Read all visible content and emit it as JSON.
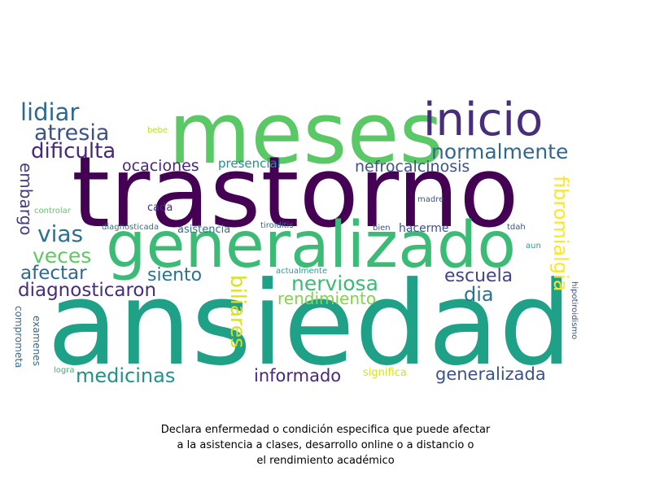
{
  "words": [
    {
      "text": "meses",
      "color": "#5ac864"
    },
    {
      "text": "trastorno",
      "color": "#440154"
    },
    {
      "text": "ansiedad",
      "color": "#1fa187"
    },
    {
      "text": "generalizado",
      "color": "#3bbb75"
    },
    {
      "text": "inicio",
      "color": "#472d7b"
    },
    {
      "text": "lidiar",
      "color": "#31688e"
    },
    {
      "text": "atresia",
      "color": "#3b528b"
    },
    {
      "text": "dificulta",
      "color": "#482878"
    },
    {
      "text": "normalmente",
      "color": "#31688e"
    },
    {
      "text": "nefrocalcinosis",
      "color": "#3b528b"
    },
    {
      "text": "ocaciones",
      "color": "#482878"
    },
    {
      "text": "presencial",
      "color": "#21918c"
    },
    {
      "text": "embargo",
      "color": "#433e85"
    },
    {
      "text": "fibromialgia",
      "color": "#fde725"
    },
    {
      "text": "vias",
      "color": "#2c728e"
    },
    {
      "text": "veces",
      "color": "#5ec962"
    },
    {
      "text": "afectar",
      "color": "#31688e"
    },
    {
      "text": "siento",
      "color": "#2c728e"
    },
    {
      "text": "diagnosticaron",
      "color": "#472d7b"
    },
    {
      "text": "nerviosa",
      "color": "#3bbb75"
    },
    {
      "text": "escuela",
      "color": "#414487"
    },
    {
      "text": "dia",
      "color": "#2c728e"
    },
    {
      "text": "rendimiento",
      "color": "#84d44b"
    },
    {
      "text": "biliares",
      "color": "#d8e219"
    },
    {
      "text": "medicinas",
      "color": "#21918c"
    },
    {
      "text": "informado",
      "color": "#482878"
    },
    {
      "text": "generalizada",
      "color": "#3b528b"
    },
    {
      "text": "significa",
      "color": "#d8e219"
    },
    {
      "text": "hacerme",
      "color": "#3b528b"
    },
    {
      "text": "bebe",
      "color": "#b5de2b"
    },
    {
      "text": "cada",
      "color": "#472d7b"
    },
    {
      "text": "controlar",
      "color": "#5ec962"
    },
    {
      "text": "diagnosticada",
      "color": "#2c728e"
    },
    {
      "text": "asistencia",
      "color": "#2c728e"
    },
    {
      "text": "tiroiditis",
      "color": "#31688e"
    },
    {
      "text": "bien",
      "color": "#3b528b"
    },
    {
      "text": "tdah",
      "color": "#3b528b"
    },
    {
      "text": "madre",
      "color": "#3b528b"
    },
    {
      "text": "aun",
      "color": "#2a9d8f"
    },
    {
      "text": "actualmente",
      "color": "#2a9d8f"
    },
    {
      "text": "hipotiroidismo",
      "color": "#3b528b"
    },
    {
      "text": "comprometa",
      "color": "#31688e"
    },
    {
      "text": "examenes",
      "color": "#31688e"
    },
    {
      "text": "logra",
      "color": "#35b779"
    }
  ],
  "caption": [
    "Declara enfermedad o condición especifica que puede afectar",
    "a la asistencia a clases, desarrollo online o a distancio o",
    "el rendimiento académico"
  ]
}
